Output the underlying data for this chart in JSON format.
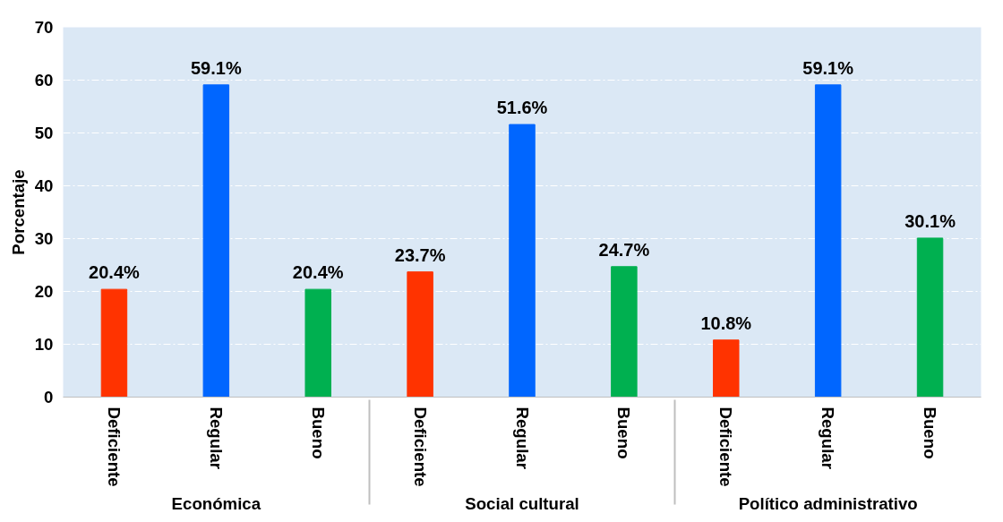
{
  "chart_data": {
    "type": "bar",
    "ylabel": "Porcentaje",
    "categories": [
      "Deficiente",
      "Regular",
      "Bueno",
      "Deficiente",
      "Regular",
      "Bueno",
      "Deficiente",
      "Regular",
      "Bueno"
    ],
    "annotations": [
      "Económica",
      "Social cultural",
      "Político administrativo"
    ],
    "values": [
      20.4,
      59.1,
      20.4,
      23.7,
      51.6,
      24.7,
      10.8,
      59.1,
      30.1
    ],
    "colors": [
      "#ff3300",
      "#0066ff",
      "#00b050",
      "#ff3300",
      "#0066ff",
      "#00b050",
      "#ff3300",
      "#0066ff",
      "#00b050"
    ],
    "value_labels": [
      "20.4%",
      "59.1%",
      "20.4%",
      "23.7%",
      "51.6%",
      "24.7%",
      "10.8%",
      "59.1%",
      "30.1%"
    ],
    "ylim": [
      0,
      70
    ],
    "yticks": [
      0,
      10,
      20,
      30,
      40,
      50,
      60,
      70
    ],
    "grid": "y"
  }
}
